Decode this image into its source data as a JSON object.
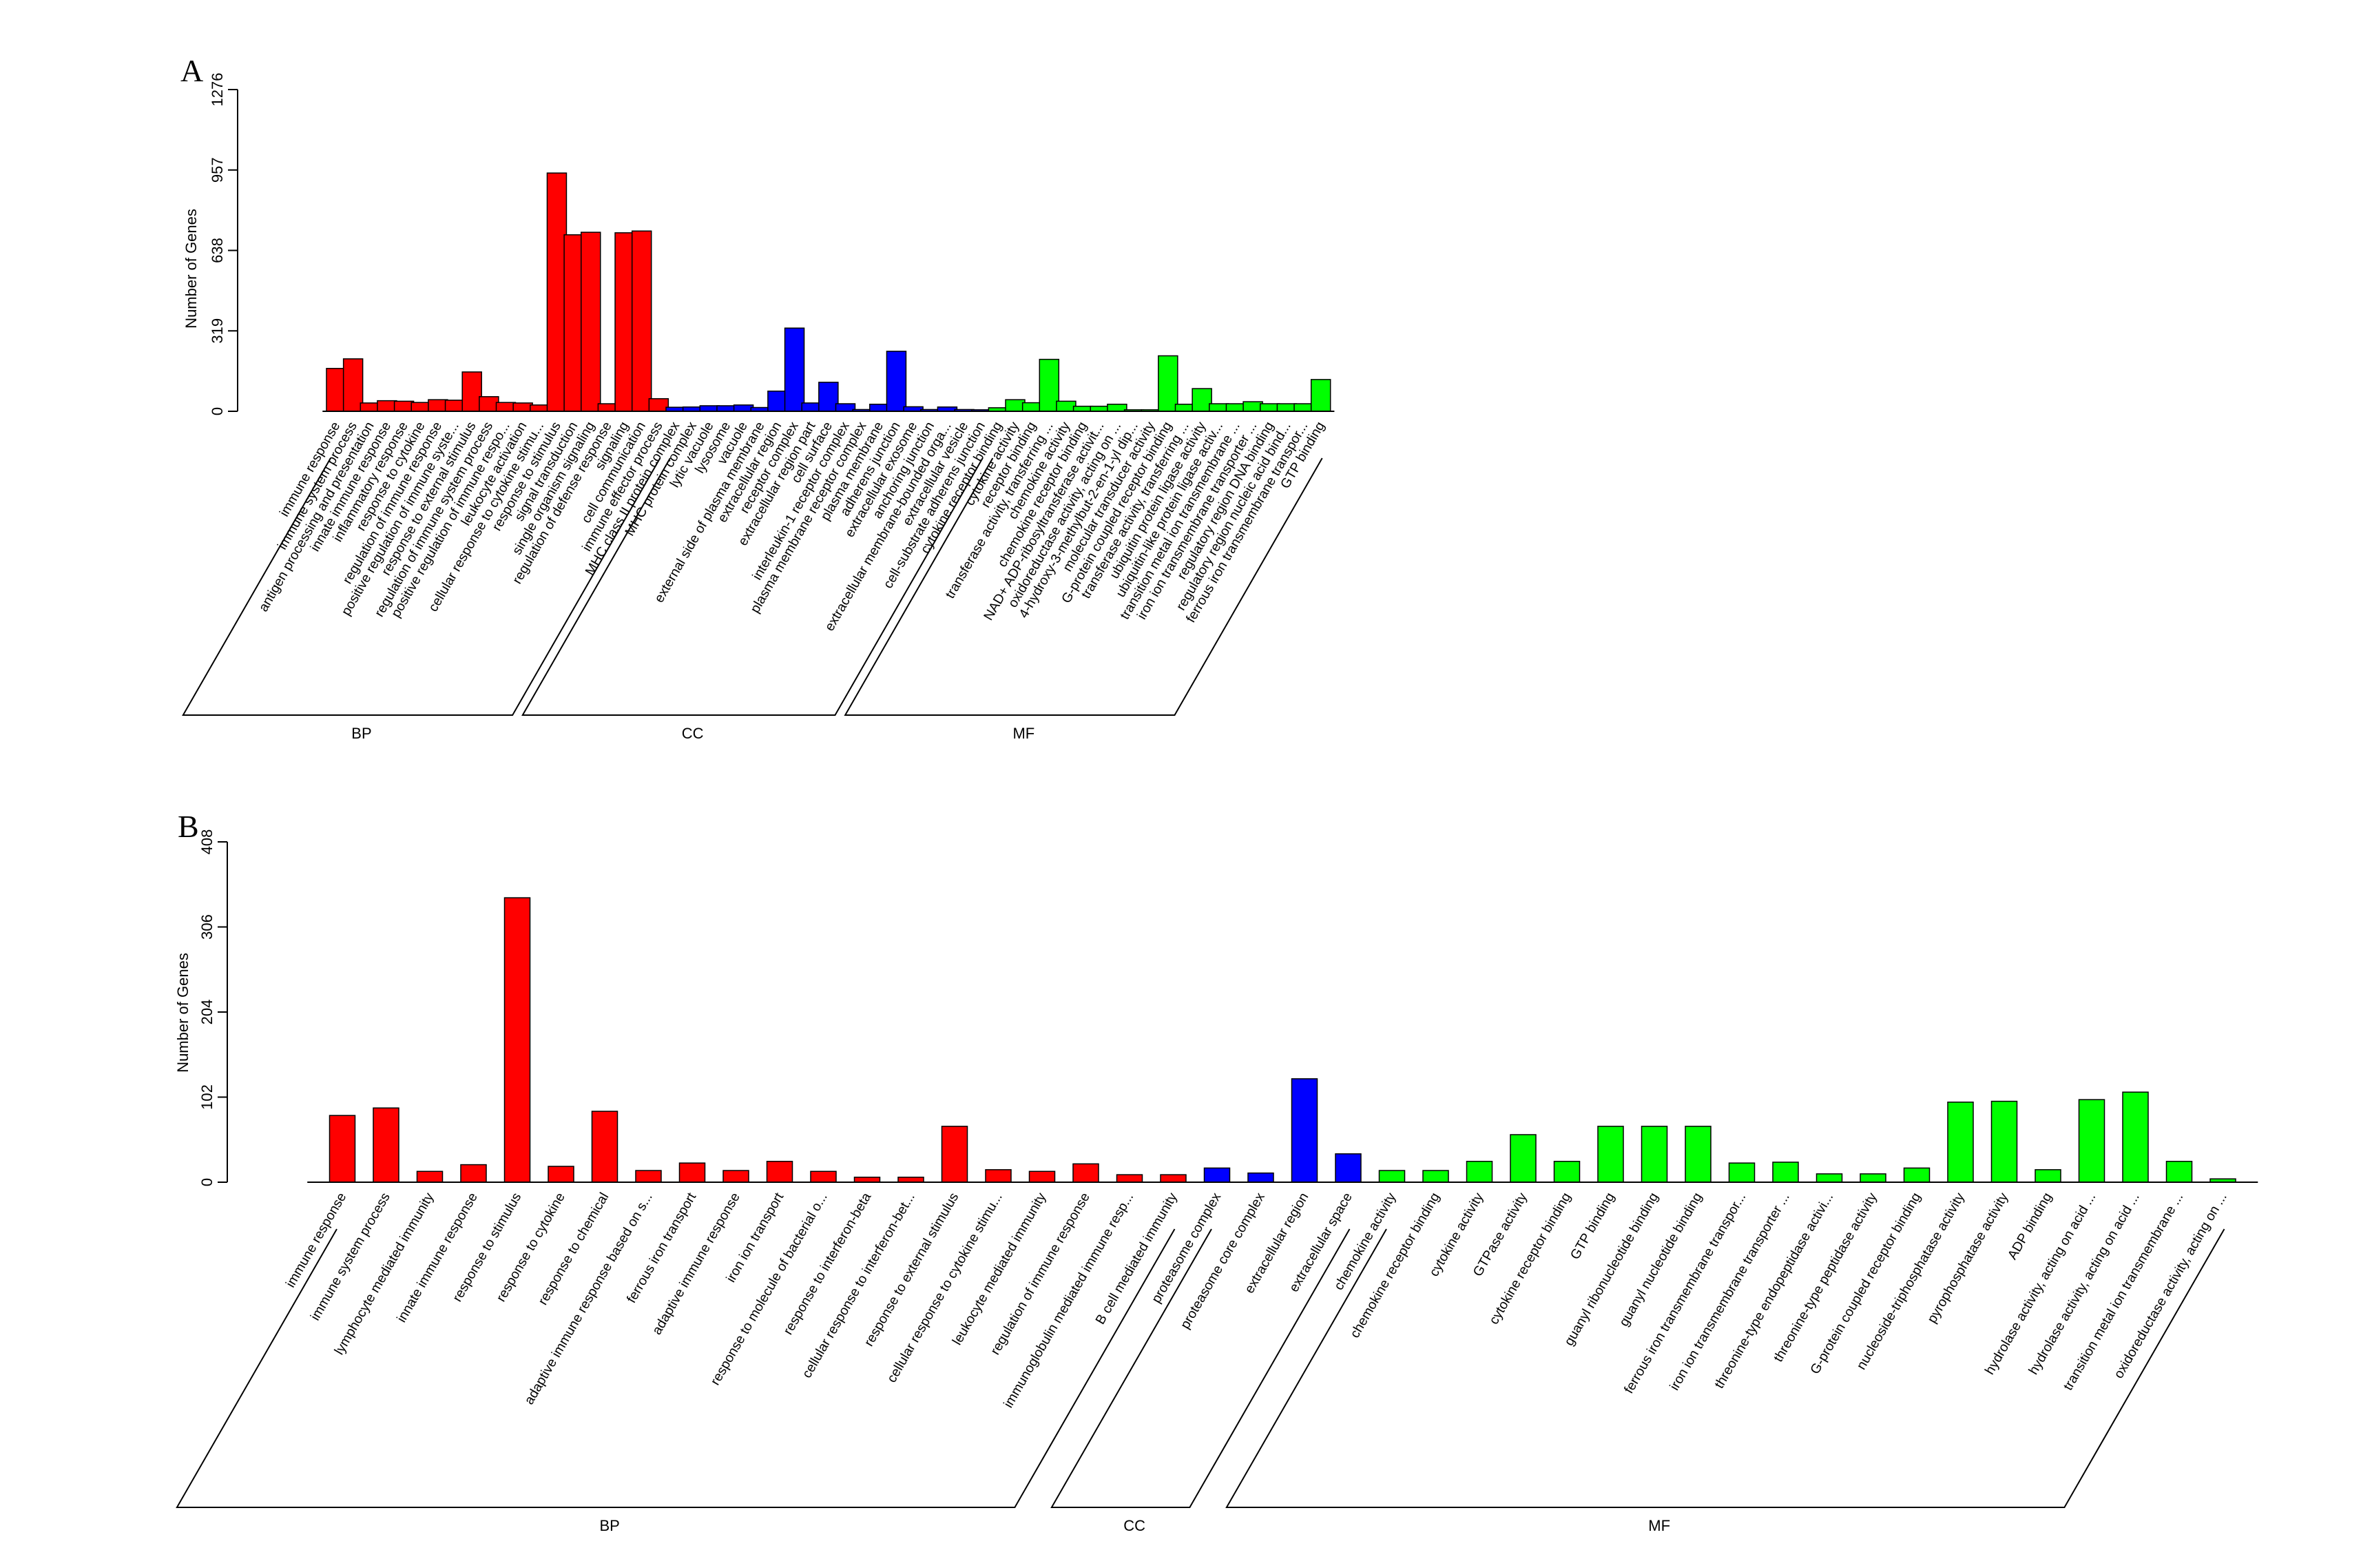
{
  "colors": {
    "BP": "#ff0000",
    "CC": "#0000ff",
    "MF": "#00ff00"
  },
  "chart_data": [
    {
      "panel": "A",
      "type": "bar",
      "ylabel": "Number of Genes",
      "ylim": [
        0,
        1276
      ],
      "yticks": [
        0,
        319,
        638,
        957,
        1276
      ],
      "groups": [
        {
          "name": "BP",
          "categories": [
            "immune response",
            "immune system process",
            "antigen processing and presentation",
            "innate immune response",
            "inflammatory response",
            "response to cytokine",
            "regulation of immune response",
            "positive regulation of immune syste...",
            "response to external stimulus",
            "regulation of immune system process",
            "positive regulation of immune respo...",
            "leukocyte activation",
            "cellular response to cytokine stimu...",
            "response to stimulus",
            "signal transduction",
            "single organism signaling",
            "regulation of defense response",
            "signaling",
            "cell communication",
            "immune effector process"
          ],
          "values": [
            170,
            208,
            33,
            42,
            40,
            35,
            46,
            44,
            156,
            58,
            35,
            33,
            25,
            945,
            700,
            710,
            30,
            708,
            715,
            50
          ]
        },
        {
          "name": "CC",
          "categories": [
            "MHC class II protein complex",
            "MHC protein complex",
            "lytic vacuole",
            "lysosome",
            "vacuole",
            "external side of plasma membrane",
            "extracellular region",
            "receptor complex",
            "extracellular region part",
            "cell surface",
            "interleukin-1 receptor complex",
            "plasma membrane receptor complex",
            "plasma membrane",
            "adherens junction",
            "extracellular exosome",
            "anchoring junction",
            "extracellular membrane-bounded orga...",
            "extracellular vesicle",
            "cell-substrate adherens junction"
          ],
          "values": [
            16,
            17,
            22,
            22,
            25,
            15,
            80,
            330,
            33,
            115,
            30,
            7,
            28,
            238,
            18,
            7,
            17,
            7,
            6
          ]
        },
        {
          "name": "MF",
          "categories": [
            "cytokine receptor binding",
            "cytokine activity",
            "receptor binding",
            "transferase activity, transferring ...",
            "chemokine activity",
            "chemokine receptor binding",
            "NAD+ ADP-ribosyltransferase activit...",
            "oxidoreductase activity, acting on ...",
            "4-hydroxy-3-methylbut-2-en-1-yl dip...",
            "molecular transducer activity",
            "G-protein coupled receptor binding",
            "transferase activity, transferring ...",
            "ubiquitin protein ligase activity",
            "ubiquitin-like protein ligase activ...",
            "transition metal ion transmembrane ...",
            "iron ion transmembrane transporter ...",
            "regulatory region DNA binding",
            "regulatory region nucleic acid bind...",
            "ferrous iron transmembrane transpor...",
            "GTP binding"
          ],
          "values": [
            14,
            46,
            34,
            206,
            40,
            20,
            20,
            28,
            6,
            6,
            220,
            28,
            90,
            30,
            30,
            38,
            30,
            30,
            30,
            126
          ]
        }
      ]
    },
    {
      "panel": "B",
      "type": "bar",
      "ylabel": "Number of Genes",
      "ylim": [
        0,
        408
      ],
      "yticks": [
        0,
        102,
        204,
        306,
        408
      ],
      "groups": [
        {
          "name": "BP",
          "categories": [
            "immune response",
            "immune system process",
            "lymphocyte mediated immunity",
            "innate immune response",
            "response to stimulus",
            "response to cytokine",
            "response to chemical",
            "adaptive immune response based on s...",
            "ferrous iron transport",
            "adaptive immune response",
            "iron ion transport",
            "response to molecule of bacterial o...",
            "response to interferon-beta",
            "cellular response to interferon-bet...",
            "response to external stimulus",
            "cellular response to cytokine stimu...",
            "leukocyte mediated immunity",
            "regulation of immune response",
            "immunoglobulin mediated immune resp...",
            "B cell mediated immunity"
          ],
          "values": [
            80,
            89,
            13,
            21,
            341,
            19,
            85,
            14,
            23,
            14,
            25,
            13,
            6,
            6,
            67,
            15,
            13,
            22,
            9,
            9
          ]
        },
        {
          "name": "CC",
          "categories": [
            "proteasome complex",
            "proteasome core complex",
            "extracellular region",
            "extracellular space"
          ],
          "values": [
            17,
            11,
            124,
            34
          ]
        },
        {
          "name": "MF",
          "categories": [
            "chemokine activity",
            "chemokine receptor binding",
            "cytokine activity",
            "GTPase activity",
            "cytokine receptor binding",
            "GTP binding",
            "guanyl ribonucleotide binding",
            "guanyl nucleotide binding",
            "ferrous iron transmembrane transpor...",
            "iron ion transmembrane transporter ...",
            "threonine-type endopeptidase activi...",
            "threonine-type peptidase activity",
            "G-protein coupled receptor binding",
            "nucleoside-triphosphatase activity",
            "pyrophosphatase activity",
            "ADP binding",
            "hydrolase activity, acting on acid ...",
            "hydrolase activity, acting on acid ...",
            "transition metal ion transmembrane ...",
            "oxidoreductase activity, acting on ..."
          ],
          "values": [
            14,
            14,
            25,
            57,
            25,
            67,
            67,
            67,
            23,
            24,
            10,
            10,
            17,
            96,
            97,
            15,
            99,
            108,
            25,
            4
          ]
        }
      ]
    }
  ]
}
